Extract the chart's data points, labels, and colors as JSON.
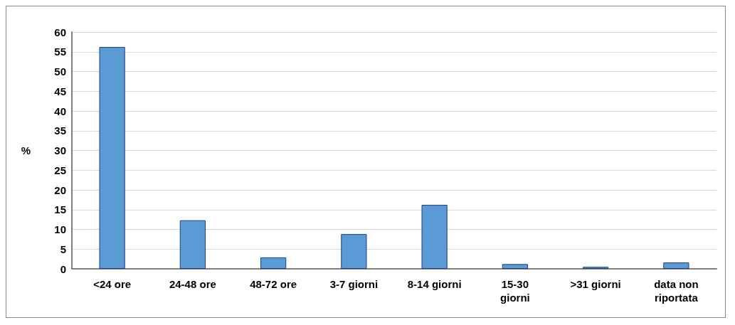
{
  "chart_data": {
    "type": "bar",
    "ylabel": "%",
    "categories": [
      "<24 ore",
      "24-48 ore",
      "48-72 ore",
      "3-7 giorni",
      "8-14 giorni",
      "15-30\ngiorni",
      ">31 giorni",
      "data non\nriportata"
    ],
    "values": [
      56.2,
      12.3,
      2.9,
      8.8,
      16.2,
      1.2,
      0.5,
      1.6
    ],
    "color": "#5b9bd5",
    "ylim": [
      0,
      60
    ],
    "yticks": [
      0,
      5,
      10,
      15,
      20,
      25,
      30,
      35,
      40,
      45,
      50,
      55,
      60
    ],
    "grid": "y"
  }
}
